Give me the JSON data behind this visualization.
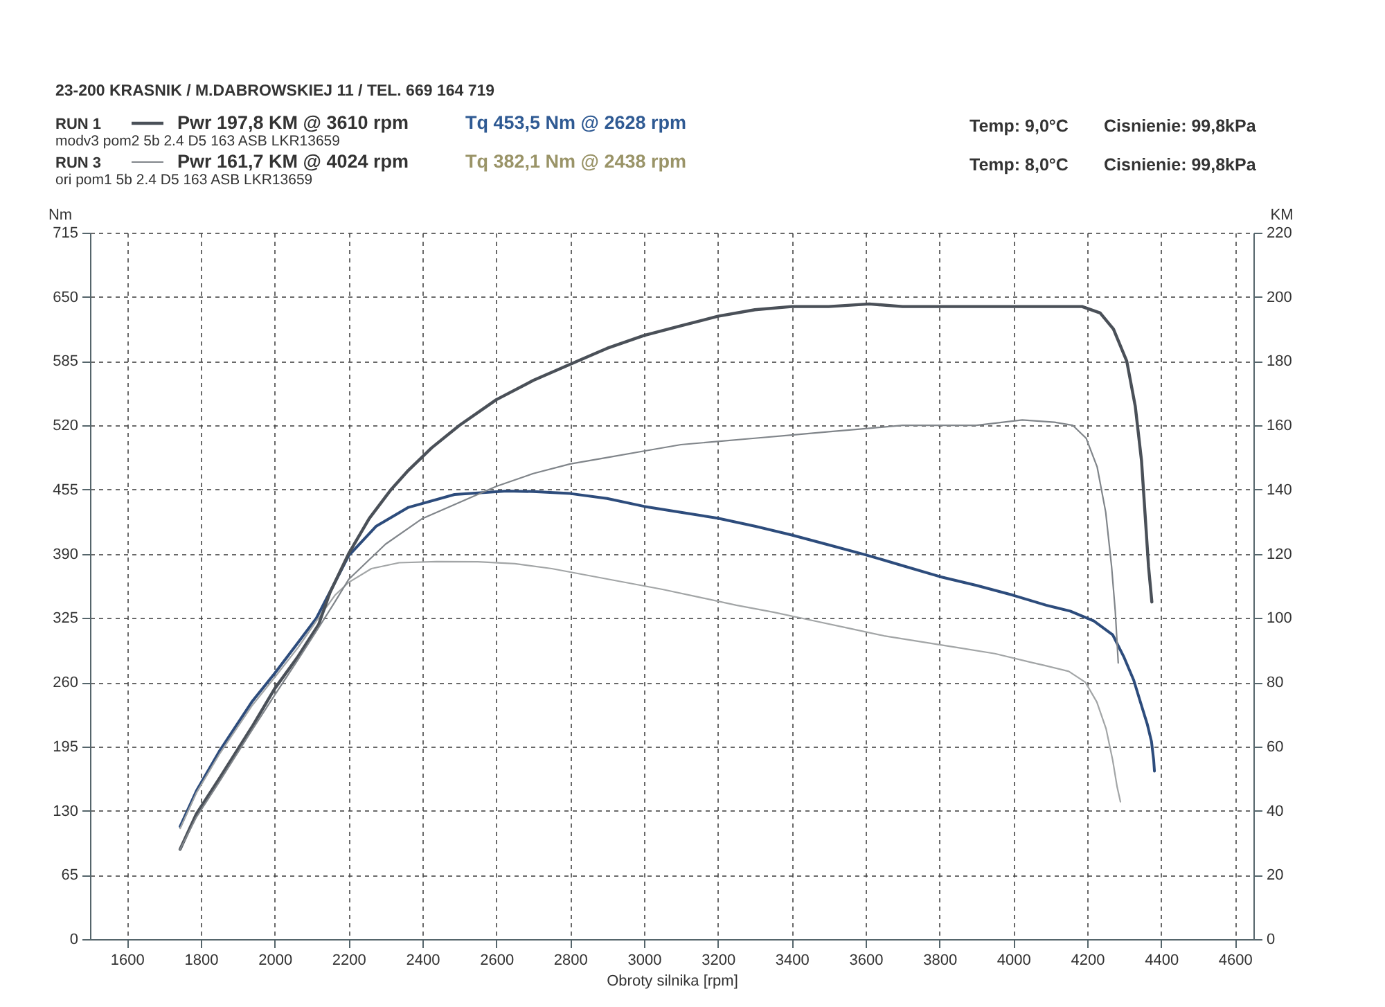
{
  "chart_data": {
    "type": "line",
    "xlabel": "Obroty silnika [rpm]",
    "ylabel": "Nm",
    "y2label": "KM",
    "xlim": [
      1500,
      4650
    ],
    "xticks": [
      1600,
      1800,
      2000,
      2200,
      2400,
      2600,
      2800,
      3000,
      3200,
      3400,
      3600,
      3800,
      4000,
      4200,
      4400,
      4600
    ],
    "ylim": [
      0,
      715
    ],
    "yticks": [
      0,
      65,
      130,
      195,
      260,
      325,
      390,
      455,
      520,
      585,
      650,
      715
    ],
    "y2lim": [
      0,
      220
    ],
    "y2ticks": [
      0,
      20,
      40,
      60,
      80,
      100,
      120,
      140,
      160,
      180,
      200,
      220
    ],
    "grid": true,
    "legend": "top left",
    "annotations": [
      "23-200 KRASNIK / M.DABROWSKIEJ 11 / TEL. 669 164 719",
      "Pwr 197,8 KM @ 3610 rpm",
      "Tq 453,5 Nm @ 2628 rpm",
      "modv3 pom2 5b 2.4 D5 163 ASB LKR13659",
      "Pwr 161,7 KM @ 4024 rpm",
      "Tq 382,1 Nm @ 2438 rpm",
      "ori pom1 5b 2.4 D5 163 ASB LKR13659",
      "Temp: 9,0°C",
      "Cisnienie: 99,8kPa",
      "Temp: 8,0°C",
      "Cisnienie: 99,8kPa"
    ],
    "series": [
      {
        "name": "RUN 1",
        "color": "#4a5058",
        "axis": "y2",
        "x": [
          1744,
          1788,
          1850,
          1938,
          2000,
          2063,
          2119,
          2150,
          2200,
          2256,
          2315,
          2362,
          2425,
          2500,
          2600,
          2700,
          2800,
          2900,
          3000,
          3100,
          3200,
          3300,
          3400,
          3500,
          3610,
          3700,
          3800,
          3900,
          4000,
          4100,
          4186,
          4235,
          4271,
          4307,
          4330,
          4347,
          4358,
          4366,
          4375
        ],
        "values": [
          28,
          39,
          50,
          66,
          78,
          88,
          98,
          108,
          120,
          131,
          140,
          146,
          153,
          160,
          168,
          174,
          179,
          184,
          188,
          191,
          194,
          196,
          197,
          197,
          197.8,
          197,
          197,
          197,
          197,
          197,
          197,
          195,
          190,
          180,
          166,
          149,
          130,
          116,
          105
        ]
      },
      {
        "color": "#2d4c7c",
        "x": [
          1744,
          1788,
          1850,
          1938,
          2000,
          2063,
          2113,
          2163,
          2200,
          2275,
          2362,
          2487,
          2628,
          2700,
          2800,
          2900,
          3000,
          3100,
          3200,
          3300,
          3400,
          3500,
          3600,
          3700,
          3800,
          3900,
          4000,
          4089,
          4154,
          4218,
          4269,
          4300,
          4326,
          4344,
          4363,
          4374,
          4380,
          4382
        ],
        "values": [
          114,
          150,
          190,
          240,
          269,
          300,
          325,
          361,
          388,
          418,
          437,
          450,
          453.5,
          453,
          451,
          446,
          438,
          432,
          426,
          418,
          409,
          399,
          389,
          378,
          367,
          358,
          348,
          338,
          332,
          322,
          308,
          285,
          262,
          240,
          217,
          200,
          181,
          170
        ]
      },
      {
        "name": "RUN 3",
        "color": "#80858a",
        "axis": "y2",
        "x": [
          1744,
          1788,
          1850,
          1938,
          2000,
          2063,
          2119,
          2163,
          2200,
          2300,
          2400,
          2500,
          2600,
          2700,
          2800,
          2900,
          3000,
          3100,
          3200,
          3300,
          3400,
          3500,
          3600,
          3700,
          3800,
          3900,
          4024,
          4111,
          4161,
          4197,
          4227,
          4250,
          4266,
          4276,
          4284
        ],
        "values": [
          28,
          38,
          49,
          65,
          76,
          87,
          97,
          105,
          112,
          123,
          131,
          136,
          141,
          145,
          148,
          150,
          152,
          154,
          155,
          156,
          157,
          158,
          159,
          160,
          160,
          160,
          161.7,
          161,
          160,
          156,
          147,
          133,
          116,
          102,
          86
        ]
      },
      {
        "color": "#a2a5a6",
        "x": [
          1744,
          1788,
          1850,
          1938,
          2000,
          2063,
          2113,
          2163,
          2200,
          2262,
          2337,
          2438,
          2550,
          2650,
          2750,
          2850,
          2950,
          3050,
          3150,
          3250,
          3350,
          3450,
          3550,
          3650,
          3750,
          3850,
          3950,
          4050,
          4085,
          4150,
          4195,
          4226,
          4251,
          4269,
          4281,
          4290
        ],
        "values": [
          112,
          148,
          187,
          236,
          265,
          295,
          322,
          348,
          361,
          375,
          381,
          382.1,
          382,
          380,
          375,
          368,
          361,
          354,
          346,
          338,
          331,
          323,
          315,
          307,
          301,
          295,
          289,
          280,
          277,
          271,
          260,
          240,
          213,
          181,
          154,
          139
        ]
      }
    ]
  }
}
